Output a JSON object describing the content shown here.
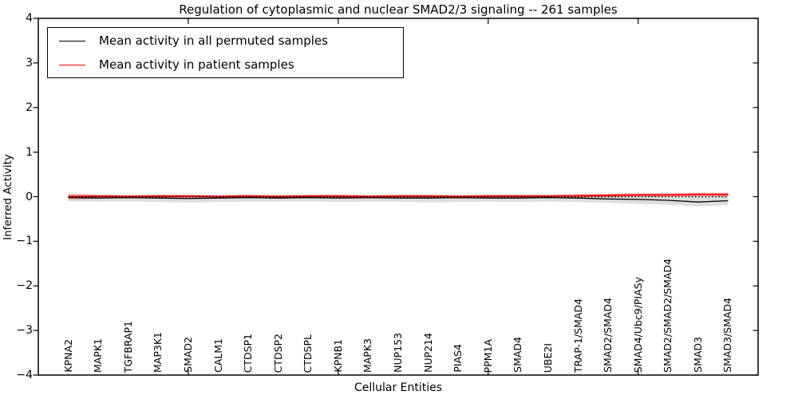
{
  "title": "Regulation of cytoplasmic and nuclear SMAD2/3 signaling -- 261 samples",
  "axes": {
    "x_label": "Cellular Entities",
    "y_label": "Inferred Activity",
    "y_ticks": [
      4,
      3,
      2,
      1,
      0,
      -1,
      -2,
      -3,
      -4
    ],
    "y_tick_labels": [
      "4",
      "3",
      "2",
      "1",
      "0",
      "−1",
      "−2",
      "−3",
      "−4"
    ]
  },
  "legend": {
    "entries": [
      {
        "label": "Mean activity in all permuted samples",
        "color": "#000000"
      },
      {
        "label": "Mean activity in patient samples",
        "color": "#ff0000"
      }
    ]
  },
  "chart_data": {
    "type": "line",
    "title": "Regulation of cytoplasmic and nuclear SMAD2/3 signaling -- 261 samples",
    "xlabel": "Cellular Entities",
    "ylabel": "Inferred Activity",
    "ylim": [
      -4,
      4
    ],
    "xlim": [
      0,
      24
    ],
    "grid": false,
    "legend_position": "upper left",
    "x_major_ticks": [
      5,
      10,
      15,
      20
    ],
    "categories": [
      "KPNA2",
      "MAPK1",
      "TGFBRAP1",
      "MAP3K1",
      "SMAD2",
      "CALM1",
      "CTDSP1",
      "CTDSP2",
      "CTDSPL",
      "KPNB1",
      "MAPK3",
      "NUP153",
      "NUP214",
      "PIAS4",
      "PPM1A",
      "SMAD4",
      "UBE2I",
      "TRAP-1/SMAD4",
      "SMAD2/SMAD4",
      "SMAD4/Ubc9/PIASy",
      "SMAD2/SMAD2/SMAD4",
      "SMAD3",
      "SMAD3/SMAD4"
    ],
    "series": [
      {
        "name": "Mean activity in all permuted samples",
        "color": "#000000",
        "style": "solid",
        "width": 1.3,
        "values": [
          -0.02,
          -0.03,
          -0.02,
          -0.03,
          -0.04,
          -0.03,
          -0.02,
          -0.03,
          -0.02,
          -0.03,
          -0.02,
          -0.03,
          -0.03,
          -0.02,
          -0.03,
          -0.03,
          -0.02,
          -0.03,
          -0.05,
          -0.06,
          -0.08,
          -0.12,
          -0.09
        ]
      },
      {
        "name": "Mean activity in patient samples",
        "color": "#ff0000",
        "style": "solid",
        "width": 1.8,
        "values": [
          0.0,
          0.01,
          0.0,
          0.01,
          0.01,
          0.0,
          0.01,
          0.0,
          0.01,
          0.01,
          0.0,
          0.01,
          0.01,
          0.0,
          0.01,
          0.01,
          0.01,
          0.02,
          0.03,
          0.04,
          0.04,
          0.05,
          0.05
        ]
      }
    ],
    "bands": [
      {
        "name": "permuted-activity-range",
        "color": "rgba(0,0,0,0.13)",
        "upper": [
          0.05,
          0.04,
          0.04,
          0.04,
          0.03,
          0.04,
          0.04,
          0.04,
          0.04,
          0.04,
          0.04,
          0.04,
          0.04,
          0.04,
          0.04,
          0.04,
          0.04,
          0.03,
          0.03,
          0.02,
          0.02,
          0.01,
          0.02
        ],
        "lower": [
          -0.1,
          -0.11,
          -0.1,
          -0.12,
          -0.13,
          -0.12,
          -0.11,
          -0.11,
          -0.1,
          -0.12,
          -0.11,
          -0.11,
          -0.13,
          -0.12,
          -0.11,
          -0.12,
          -0.11,
          -0.12,
          -0.14,
          -0.16,
          -0.18,
          -0.22,
          -0.19
        ]
      },
      {
        "name": "patient-activity-range",
        "color": "rgba(255,0,0,0.28)",
        "upper": [
          0.07,
          0.05,
          0.04,
          0.05,
          0.05,
          0.04,
          0.05,
          0.04,
          0.05,
          0.05,
          0.04,
          0.05,
          0.05,
          0.04,
          0.05,
          0.05,
          0.05,
          0.06,
          0.07,
          0.08,
          0.08,
          0.09,
          0.09
        ],
        "lower": [
          -0.07,
          -0.04,
          -0.04,
          -0.03,
          -0.04,
          -0.04,
          -0.03,
          -0.04,
          -0.03,
          -0.04,
          -0.04,
          -0.03,
          -0.04,
          -0.04,
          -0.03,
          -0.04,
          -0.03,
          -0.02,
          -0.01,
          0.0,
          0.0,
          0.01,
          0.0
        ]
      }
    ],
    "reference_line": {
      "y": 0,
      "style": "dotted",
      "color": "#000000"
    }
  }
}
